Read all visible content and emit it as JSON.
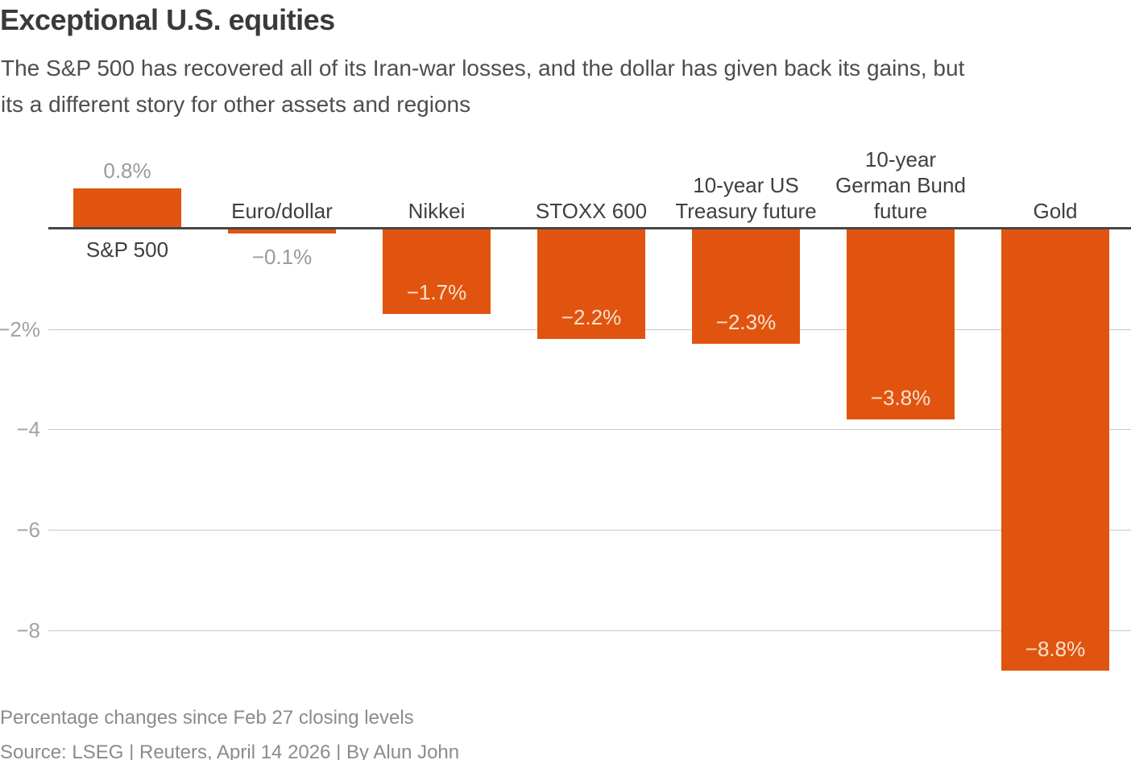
{
  "header": {
    "title": "Exceptional U.S. equities",
    "subtitle_line1": "The S&P 500 has recovered all of its Iran-war losses, and the dollar has given back its gains, but",
    "subtitle_line2": "its a different story for other assets and regions"
  },
  "footer": {
    "note": "Percentage changes since Feb 27 closing levels",
    "source": "Source: LSEG | Reuters, April 14 2026 | By Alun John"
  },
  "chart_data": {
    "type": "bar",
    "title": "Exceptional U.S. equities",
    "subtitle": "The S&P 500 has recovered all of its Iran-war losses, and the dollar has given back its gains, but its a different story for other assets and regions",
    "unit": "percent change since Feb 27 closing levels",
    "categories": [
      "S&P 500",
      "Euro/dollar",
      "Nikkei",
      "STOXX 600",
      "10-year US Treasury future",
      "10-year German Bund future",
      "Gold"
    ],
    "values": [
      0.8,
      -0.1,
      -1.7,
      -2.2,
      -2.3,
      -3.8,
      -8.8
    ],
    "bars": [
      {
        "label_lines": [
          "S&P 500"
        ],
        "value": 0.8,
        "value_label": "0.8%",
        "category_position": "below",
        "value_position": "above"
      },
      {
        "label_lines": [
          "Euro/dollar"
        ],
        "value": -0.1,
        "value_label": "−0.1%",
        "category_position": "above",
        "value_position": "below"
      },
      {
        "label_lines": [
          "Nikkei"
        ],
        "value": -1.7,
        "value_label": "−1.7%",
        "category_position": "above",
        "value_position": "inside"
      },
      {
        "label_lines": [
          "STOXX 600"
        ],
        "value": -2.2,
        "value_label": "−2.2%",
        "category_position": "above",
        "value_position": "inside"
      },
      {
        "label_lines": [
          "10-year US",
          "Treasury future"
        ],
        "value": -2.3,
        "value_label": "−2.3%",
        "category_position": "above",
        "value_position": "inside"
      },
      {
        "label_lines": [
          "10-year",
          "German Bund",
          "future"
        ],
        "value": -3.8,
        "value_label": "−3.8%",
        "category_position": "above",
        "value_position": "inside"
      },
      {
        "label_lines": [
          "Gold"
        ],
        "value": -8.8,
        "value_label": "−8.8%",
        "category_position": "above",
        "value_position": "inside"
      }
    ],
    "yticks": [
      {
        "value": -2,
        "label": "−2%"
      },
      {
        "value": -4,
        "label": "−4"
      },
      {
        "value": -6,
        "label": "−6"
      },
      {
        "value": -8,
        "label": "−8"
      }
    ],
    "ylim": [
      -9.3,
      1.0
    ],
    "grid": "horizontal",
    "legend": "none",
    "colors": {
      "bar": "#e1540f",
      "zero_line": "#474747",
      "gridline": "#c9c9c9",
      "label_inside_bar": "#f7e2cd",
      "label_outside_bar": "#9a9a9a",
      "category_label": "#3f3f3f"
    }
  }
}
